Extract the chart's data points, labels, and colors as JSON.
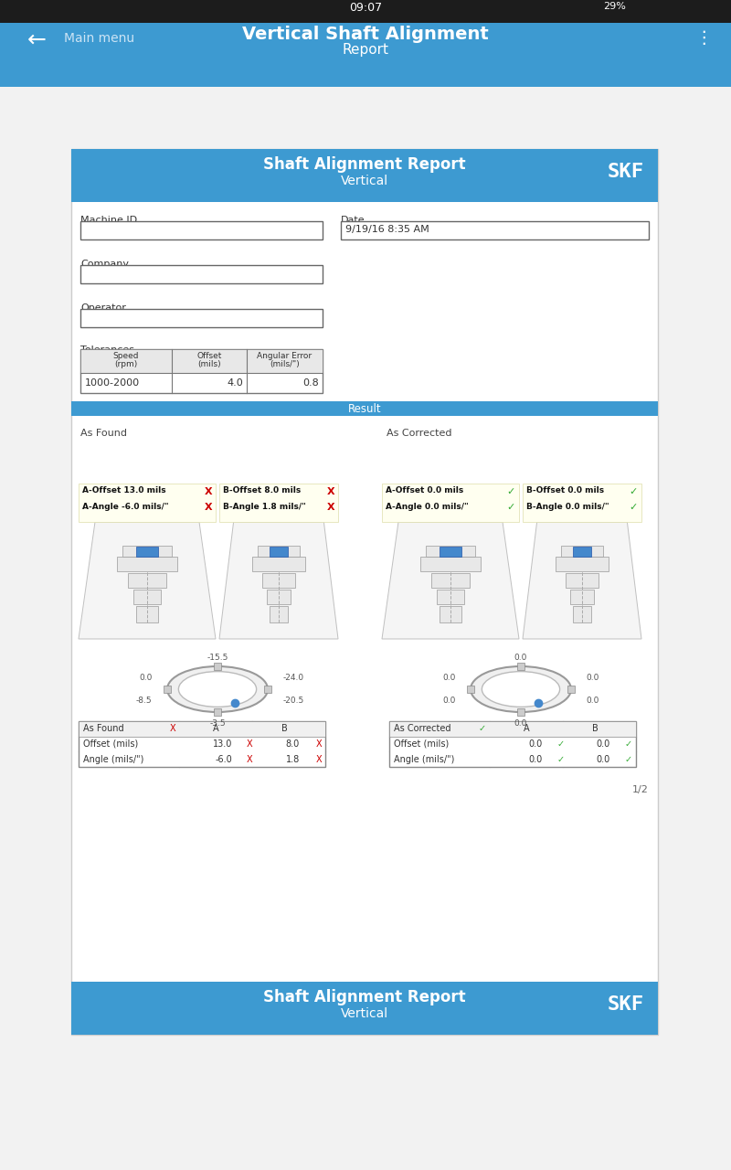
{
  "status_bar_bg": "#1a1a1a",
  "status_bar_time": "09:07",
  "status_bar_battery": "29%",
  "nav_bar_bg": "#3d9ad1",
  "nav_bar_title": "Vertical Shaft Alignment",
  "nav_bar_subtitle": "Report",
  "nav_bar_back": "Main menu",
  "page_bg": "#f2f2f2",
  "header_bg": "#3d9ad1",
  "header_title": "Shaft Alignment Report",
  "header_subtitle": "Vertical",
  "skf_logo": "SKF",
  "machine_id_label": "Machine ID",
  "date_label": "Date",
  "date_value": "9/19/16 8:35 AM",
  "company_label": "Company",
  "operator_label": "Operator",
  "tolerances_label": "Tolerances",
  "tol_row1_speed": "1000-2000",
  "tol_row1_offset": "4.0",
  "tol_row1_angle": "0.8",
  "result_label": "Result",
  "as_found_label": "As Found",
  "as_corrected_label": "As Corrected",
  "af_a_offset": "A-Offset 13.0 mils",
  "af_a_angle": "A-Angle -6.0 mils/\"",
  "af_b_offset": "B-Offset 8.0 mils",
  "af_b_angle": "B-Angle 1.8 mils/\"",
  "ac_a_offset": "A-Offset 0.0 mils",
  "ac_a_angle": "A-Angle 0.0 mils/\"",
  "ac_b_offset": "B-Offset 0.0 mils",
  "ac_b_angle": "B-Angle 0.0 mils/\"",
  "table_af_label": "As Found",
  "table_ac_label": "As Corrected",
  "table_col_a": "A",
  "table_col_b": "B",
  "table_offset_row": "Offset (mils)",
  "table_angle_row": "Angle (mils/\")",
  "af_offset_a": "13.0",
  "af_offset_b": "8.0",
  "af_angle_a": "-6.0",
  "af_angle_b": "1.8",
  "ac_offset_a": "0.0",
  "ac_offset_b": "0.0",
  "ac_angle_a": "0.0",
  "ac_angle_b": "0.0",
  "footer_title": "Shaft Alignment Report",
  "footer_subtitle": "Vertical",
  "page_num": "1/2",
  "x_mark_color": "#cc0000",
  "check_mark_color": "#33aa33",
  "ring_labels_af": [
    "-15.5",
    "-24.0",
    "-20.5",
    "-3.5",
    "-8.5",
    "0.0"
  ],
  "ring_labels_ac": [
    "0.0",
    "0.0",
    "0.0",
    "0.0",
    "0.0",
    "0.0"
  ]
}
